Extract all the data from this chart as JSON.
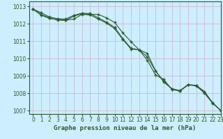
{
  "title": "Graphe pression niveau de la mer (hPa)",
  "bg_color": "#cceeff",
  "grid_color": "#ccbbcc",
  "line_color": "#2d5a2d",
  "xlim": [
    -0.5,
    23
  ],
  "ylim": [
    1006.8,
    1013.3
  ],
  "yticks": [
    1007,
    1008,
    1009,
    1010,
    1011,
    1012,
    1013
  ],
  "xticks": [
    0,
    1,
    2,
    3,
    4,
    5,
    6,
    7,
    8,
    9,
    10,
    11,
    12,
    13,
    14,
    15,
    16,
    17,
    18,
    19,
    20,
    21,
    22,
    23
  ],
  "series": [
    [
      1012.85,
      1012.65,
      1012.4,
      1012.3,
      1012.28,
      1012.5,
      1012.62,
      1012.6,
      1012.35,
      1012.1,
      1011.8,
      1011.15,
      1010.6,
      1010.5,
      1010.3,
      1009.3,
      1008.65,
      1008.25,
      1008.15,
      1008.5,
      1008.45,
      1008.1,
      1007.45,
      1007.0
    ],
    [
      1012.85,
      1012.5,
      1012.32,
      1012.25,
      1012.22,
      1012.28,
      1012.55,
      1012.52,
      1012.28,
      1012.05,
      1011.72,
      1011.1,
      1010.55,
      1010.5,
      1009.9,
      1009.05,
      1008.8,
      1008.22,
      1008.12,
      1008.48,
      1008.42,
      1008.0,
      1007.42,
      1007.0
    ],
    [
      1012.85,
      1012.55,
      1012.35,
      1012.22,
      1012.2,
      1012.45,
      1012.58,
      1012.55,
      1012.55,
      1012.35,
      1012.08,
      1011.48,
      1010.98,
      1010.5,
      1010.1,
      1009.28,
      1008.7,
      1008.26,
      1008.14,
      1008.48,
      1008.45,
      1008.06,
      1007.44,
      1007.0
    ]
  ],
  "marker": "P",
  "markersize": 3.0,
  "linewidth": 0.8,
  "title_fontsize": 6.5,
  "tick_fontsize": 5.5
}
